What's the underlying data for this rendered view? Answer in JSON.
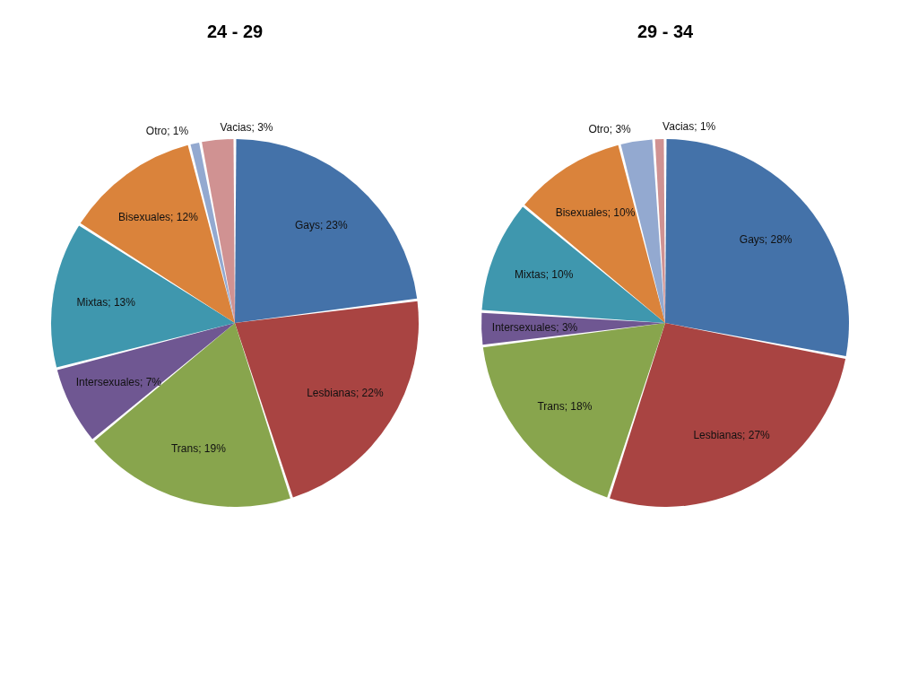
{
  "chart_data": [
    {
      "type": "pie",
      "title": "24 - 29",
      "categories": [
        "Gays",
        "Lesbianas",
        "Trans",
        "Intersexuales",
        "Mixtas",
        "Bisexuales",
        "Otro",
        "Vacias"
      ],
      "values": [
        23,
        22,
        19,
        7,
        13,
        12,
        1,
        3
      ],
      "colors": [
        "#4472a9",
        "#a94442",
        "#88a54d",
        "#6f5792",
        "#3f97ae",
        "#da833b",
        "#93a9d0",
        "#d09292"
      ],
      "value_labels": [
        "23%",
        "22%",
        "19%",
        "7%",
        "13%",
        "12%",
        "1%",
        "3%"
      ]
    },
    {
      "type": "pie",
      "title": "29 - 34",
      "categories": [
        "Gays",
        "Lesbianas",
        "Trans",
        "Intersexuales",
        "Mixtas",
        "Bisexuales",
        "Otro",
        "Vacias"
      ],
      "values": [
        28,
        27,
        18,
        3,
        10,
        10,
        3,
        1
      ],
      "colors": [
        "#4472a9",
        "#a94442",
        "#88a54d",
        "#6f5792",
        "#3f97ae",
        "#da833b",
        "#93a9d0",
        "#d09292"
      ],
      "value_labels": [
        "28%",
        "27%",
        "18%",
        "3%",
        "10%",
        "10%",
        "3%",
        "1%"
      ]
    }
  ]
}
